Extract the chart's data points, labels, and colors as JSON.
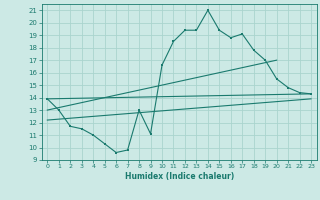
{
  "xlabel": "Humidex (Indice chaleur)",
  "xlim": [
    -0.5,
    23.5
  ],
  "ylim": [
    9,
    21.5
  ],
  "yticks": [
    9,
    10,
    11,
    12,
    13,
    14,
    15,
    16,
    17,
    18,
    19,
    20,
    21
  ],
  "xticks": [
    0,
    1,
    2,
    3,
    4,
    5,
    6,
    7,
    8,
    9,
    10,
    11,
    12,
    13,
    14,
    15,
    16,
    17,
    18,
    19,
    20,
    21,
    22,
    23
  ],
  "line_color": "#1a7a6e",
  "bg_color": "#cce9e5",
  "grid_color": "#aad4ce",
  "main_line_x": [
    0,
    1,
    2,
    3,
    4,
    5,
    6,
    7,
    8,
    9,
    10,
    11,
    12,
    13,
    14,
    15,
    16,
    17,
    18,
    19,
    20,
    21,
    22,
    23
  ],
  "main_line_y": [
    13.9,
    13.0,
    11.7,
    11.5,
    11.0,
    10.3,
    9.6,
    9.8,
    13.0,
    11.1,
    16.6,
    18.5,
    19.4,
    19.4,
    21.0,
    19.4,
    18.8,
    19.1,
    17.8,
    17.0,
    15.5,
    14.8,
    14.4,
    14.3
  ],
  "trend_line1_x": [
    0,
    23
  ],
  "trend_line1_y": [
    13.9,
    14.3
  ],
  "trend_line2_x": [
    0,
    20
  ],
  "trend_line2_y": [
    13.0,
    17.0
  ],
  "trend_line3_x": [
    0,
    23
  ],
  "trend_line3_y": [
    12.2,
    13.9
  ]
}
